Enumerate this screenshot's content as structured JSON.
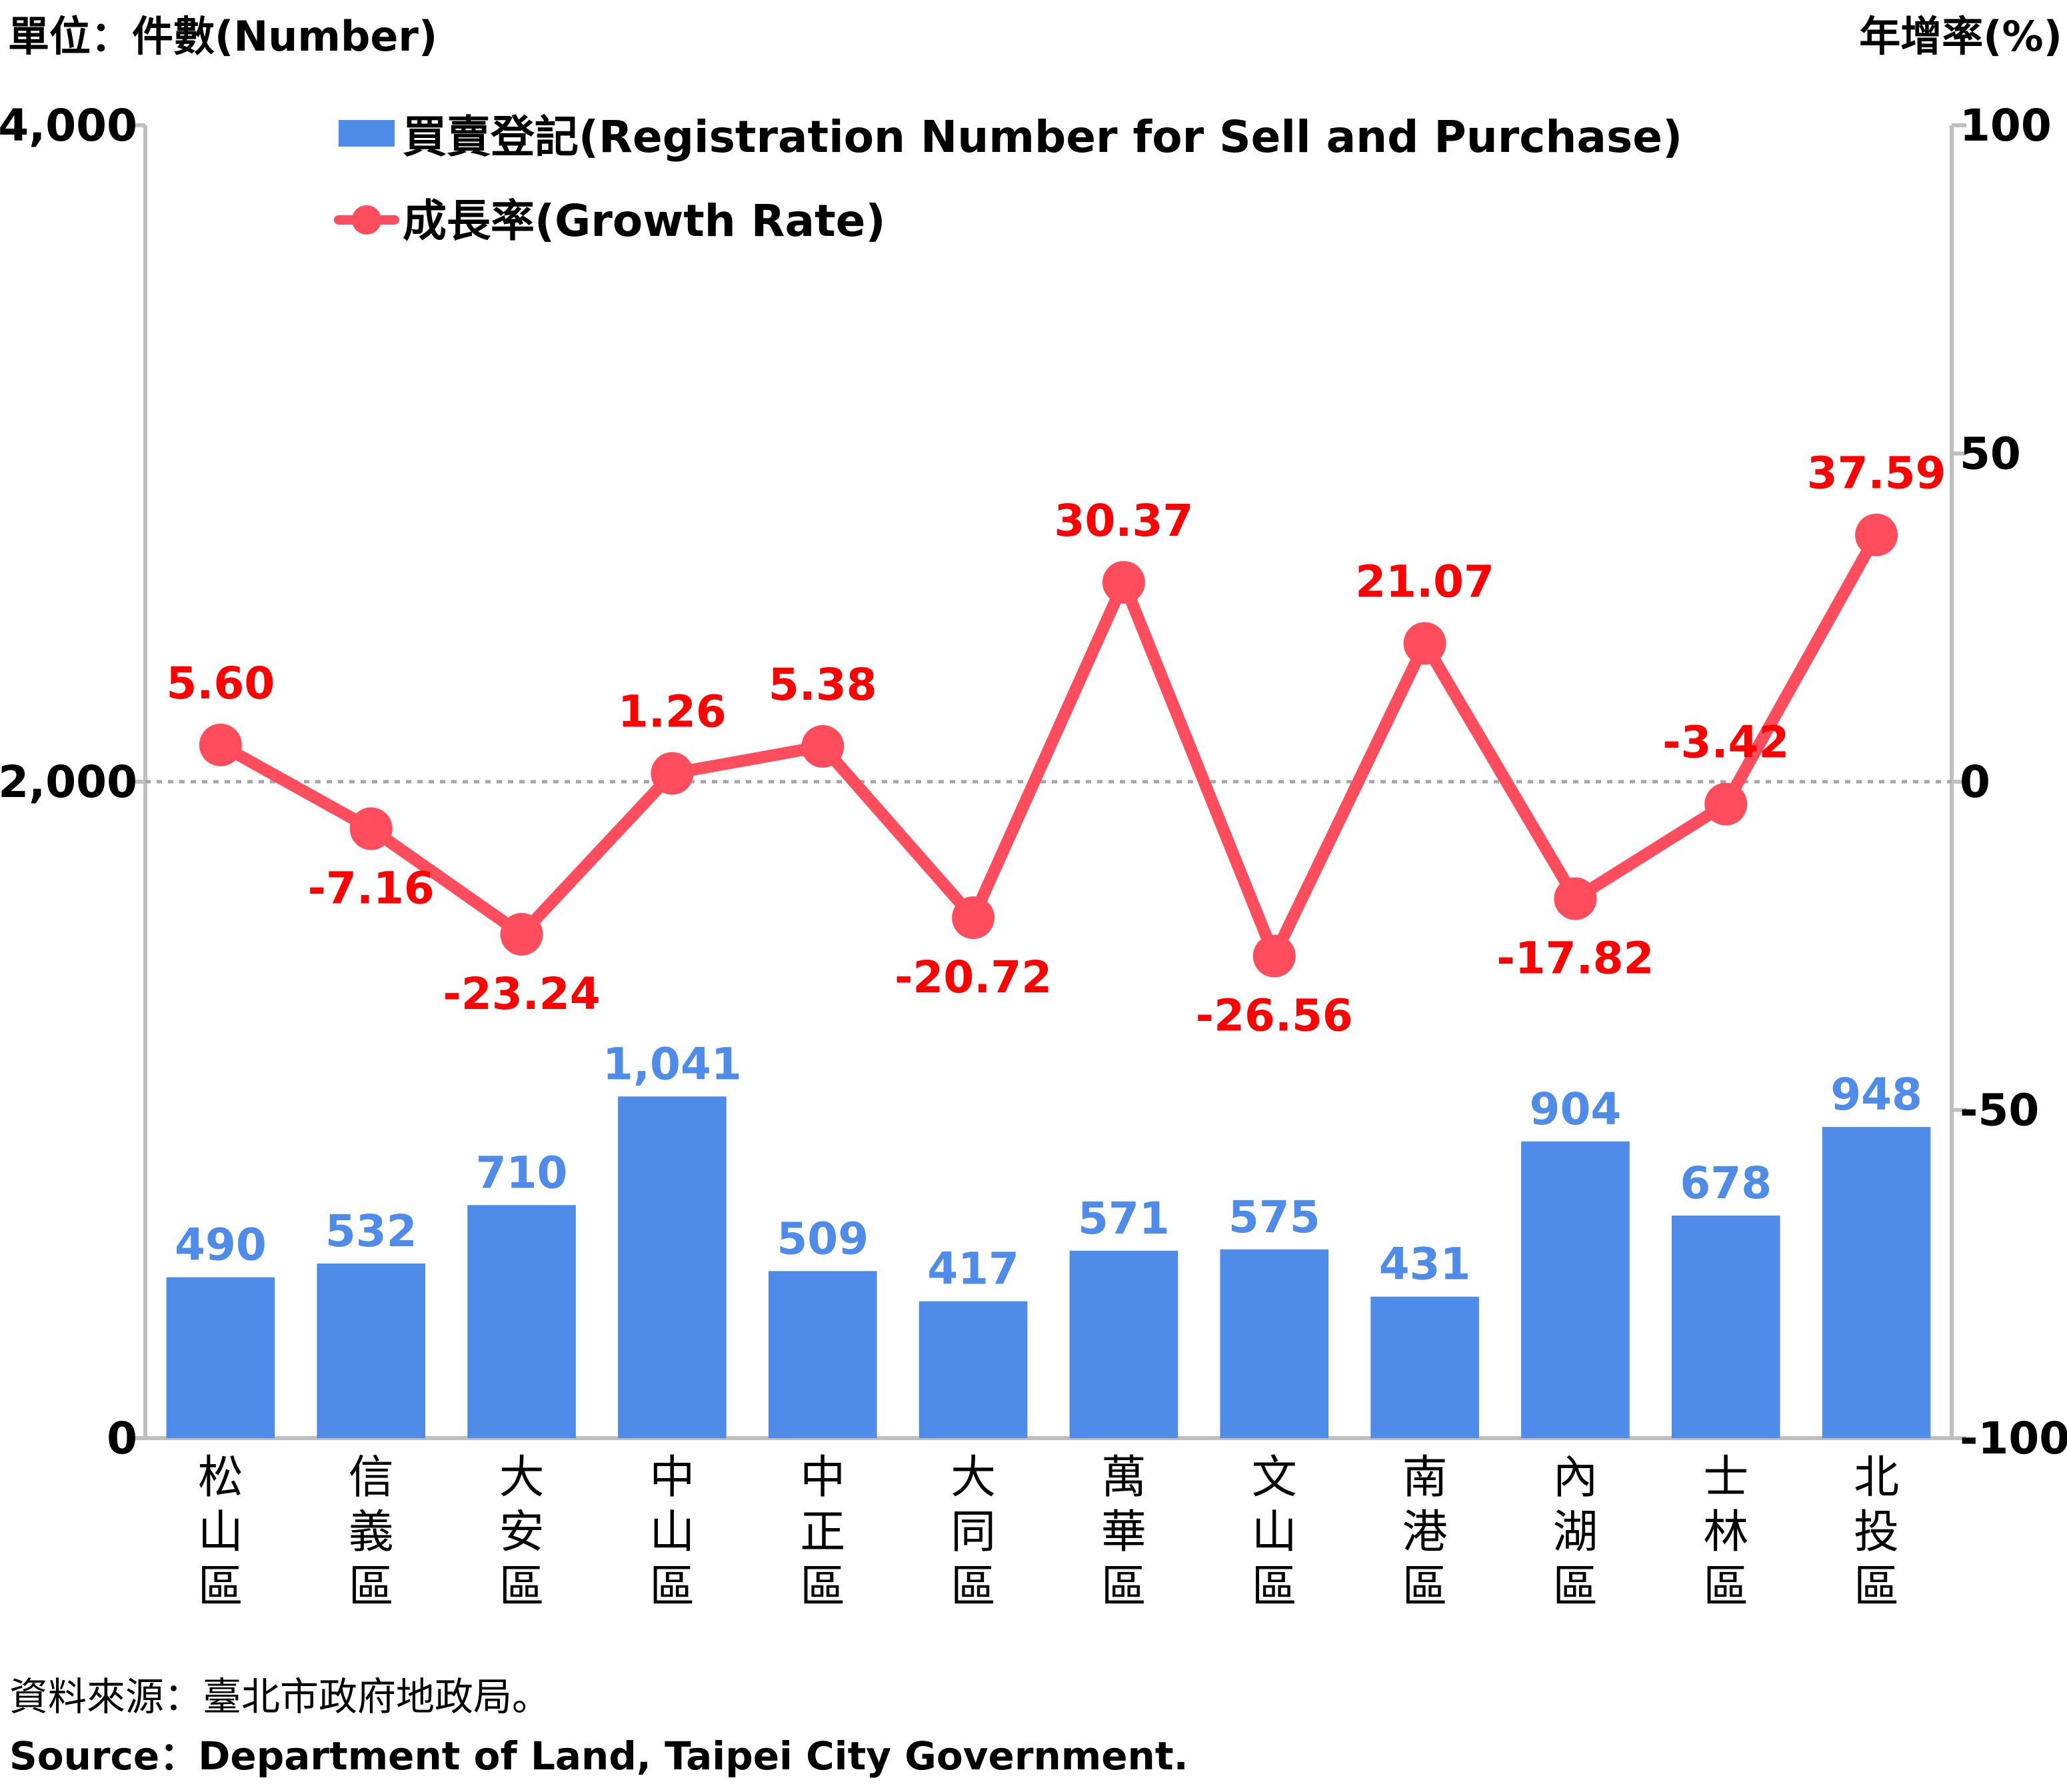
{
  "chart_data": {
    "type": "bar+line",
    "left_axis_title": "單位：件數(Number)",
    "right_axis_title": "年增率(%)",
    "left_axis": {
      "range": [
        0,
        4000
      ],
      "ticks": [
        "0",
        "2,000",
        "4,000"
      ]
    },
    "right_axis": {
      "range": [
        -100,
        100
      ],
      "ticks": [
        "-100",
        "-50",
        "0",
        "50",
        "100"
      ]
    },
    "zero_reference_line": "dotted at growth rate 0",
    "categories": [
      "松山區",
      "信義區",
      "大安區",
      "中山區",
      "中正區",
      "大同區",
      "萬華區",
      "文山區",
      "南港區",
      "內湖區",
      "士林區",
      "北投區"
    ],
    "series": [
      {
        "name": "買賣登記(Registration Number for Sell and Purchase)",
        "kind": "bar",
        "axis": "left",
        "color": "#4f8cea",
        "values": [
          490,
          532,
          710,
          1041,
          509,
          417,
          571,
          575,
          431,
          904,
          678,
          948
        ],
        "labels": [
          "490",
          "532",
          "710",
          "1,041",
          "509",
          "417",
          "571",
          "575",
          "431",
          "904",
          "678",
          "948"
        ]
      },
      {
        "name": "成長率(Growth Rate)",
        "kind": "line",
        "axis": "right",
        "color": "#ff4d5e",
        "label_color": "#ff0000",
        "values": [
          5.6,
          -7.16,
          -23.24,
          1.26,
          5.38,
          -20.72,
          30.37,
          -26.56,
          21.07,
          -17.82,
          -3.42,
          37.59
        ],
        "labels": [
          "5.60",
          "-7.16",
          "-23.24",
          "1.26",
          "5.38",
          "-20.72",
          "30.37",
          "-26.56",
          "21.07",
          "-17.82",
          "-3.42",
          "37.59"
        ]
      }
    ],
    "legend_position": "top-left"
  },
  "source": {
    "zh": "資料來源：臺北市政府地政局。",
    "en": "Source：Department of Land, Taipei City Government."
  }
}
